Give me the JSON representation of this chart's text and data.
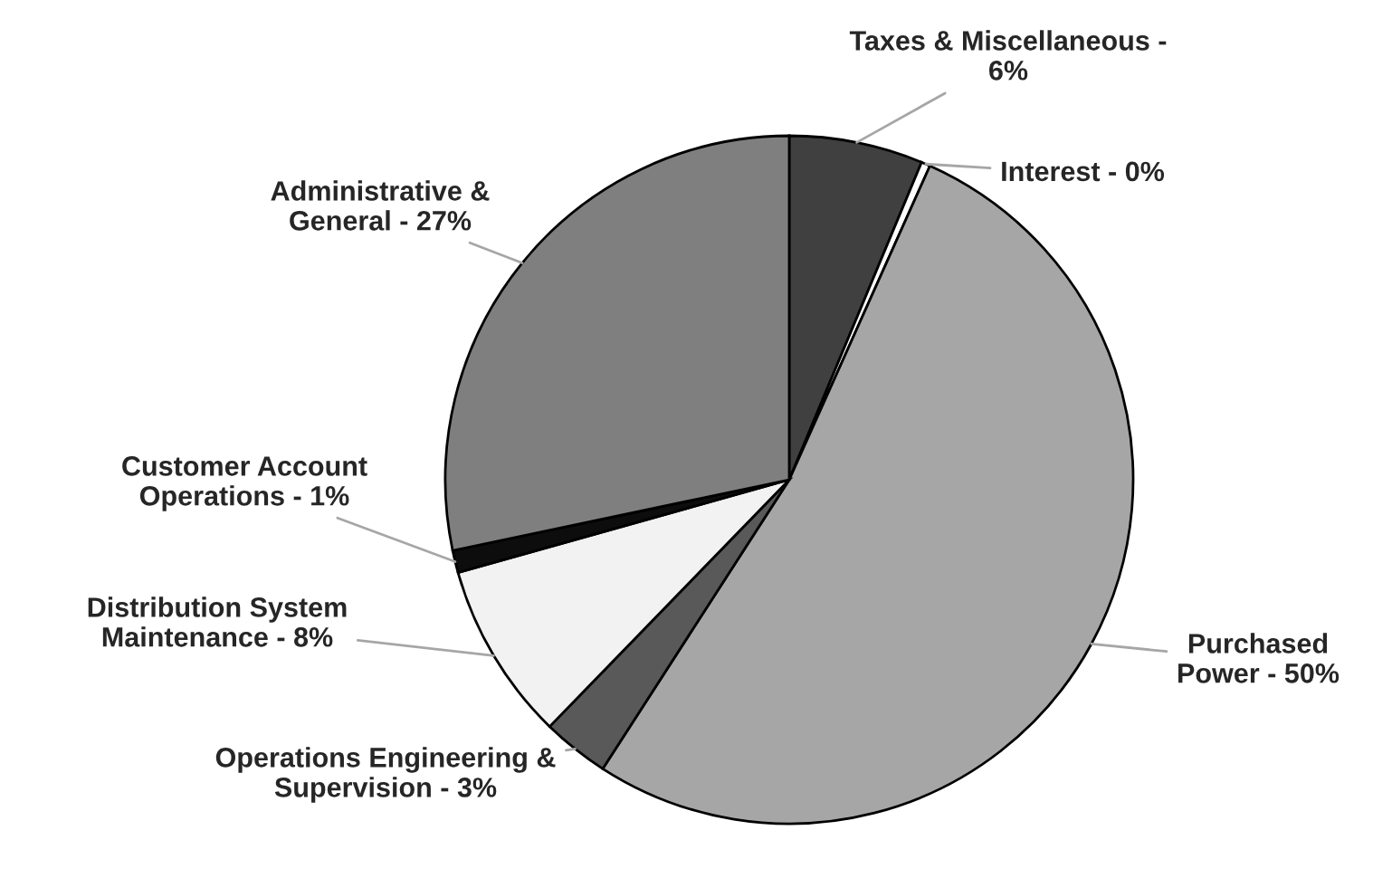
{
  "chart_data": {
    "type": "pie",
    "categories": [
      "Taxes & Miscellaneous -",
      "Interest",
      "Purchased\nPower",
      "Operations Engineering &\nSupervision",
      "Distribution System\nMaintenance",
      "Customer Account\nOperations",
      "Administrative &\nGeneral"
    ],
    "values": [
      6,
      0.4,
      50,
      3,
      8,
      1,
      27
    ],
    "value_labels": [
      "6%",
      "0%",
      "50%",
      "3%",
      "8%",
      "1%",
      "27%"
    ],
    "colors": [
      "#404040",
      "#ffffff",
      "#a6a6a6",
      "#595959",
      "#f2f2f2",
      "#0d0d0d",
      "#7f7f7f"
    ],
    "legend": false
  }
}
